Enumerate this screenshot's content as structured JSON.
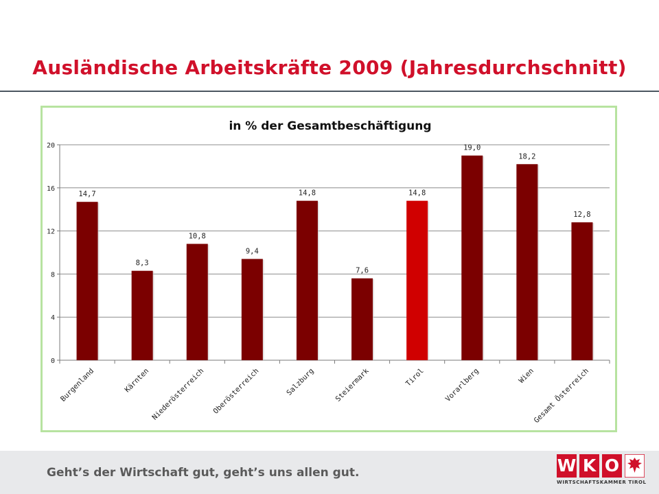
{
  "page": {
    "title": "Ausländische Arbeitskräfte 2009 (Jahresdurchschnitt)",
    "footer_slogan": "Geht’s der Wirtschaft gut, geht’s uns allen gut.",
    "logo": {
      "letters": [
        "W",
        "K",
        "O"
      ],
      "subtitle": "WIRTSCHAFTSKAMMER TIROL"
    }
  },
  "colors": {
    "title": "#d0102a",
    "bar": "#7b0000",
    "bar_highlight": "#d00000",
    "frame_border": "#b7e3a0",
    "logo": "#d0102a"
  },
  "chart_data": {
    "type": "bar",
    "title": "in % der Gesamtbeschäftigung",
    "xlabel": "",
    "ylabel": "",
    "categories": [
      "Burgenland",
      "Kärnten",
      "Niederösterreich",
      "Oberösterreich",
      "Salzburg",
      "Steiermark",
      "Tirol",
      "Vorarlberg",
      "Wien",
      "Gesamt Österreich"
    ],
    "values": [
      14.7,
      8.3,
      10.8,
      9.4,
      14.8,
      7.6,
      14.8,
      19.0,
      18.2,
      12.8
    ],
    "value_labels": [
      "14,7",
      "8,3",
      "10,8",
      "9,4",
      "14,8",
      "7,6",
      "14,8",
      "19,0",
      "18,2",
      "12,8"
    ],
    "highlight_category": "Tirol",
    "ylim": [
      0,
      20
    ],
    "yticks": [
      0,
      4,
      8,
      12,
      16,
      20
    ],
    "grid": true,
    "legend": "none"
  }
}
